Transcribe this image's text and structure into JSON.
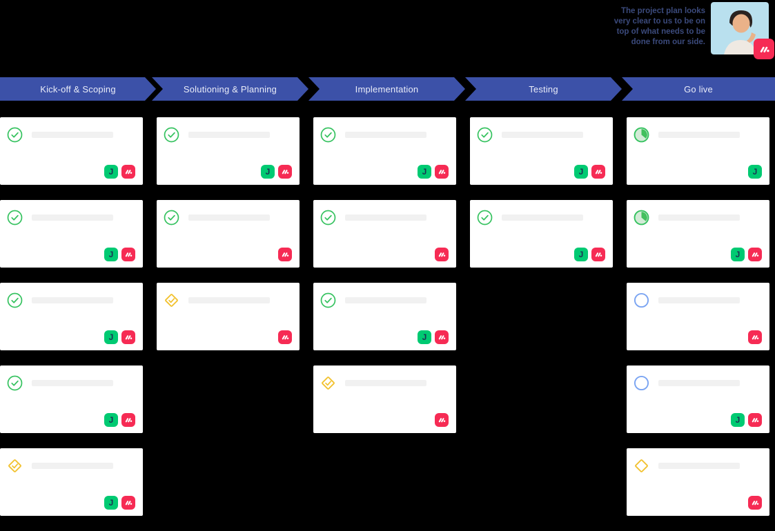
{
  "testimonial": {
    "quote_lines": [
      "The project plan looks",
      "very clear to us to be on",
      "top of what needs to be",
      "done from our side."
    ],
    "avatar": "customer-photo",
    "badge_icon": "monday-icon"
  },
  "phases": [
    {
      "label": "Kick-off & Scoping"
    },
    {
      "label": "Solutioning & Planning"
    },
    {
      "label": "Implementation"
    },
    {
      "label": "Testing"
    },
    {
      "label": "Go live"
    }
  ],
  "board": {
    "columns": [
      {
        "phase": "Kick-off & Scoping",
        "cards": [
          {
            "status": "done",
            "badges": [
              "app-j",
              "monday"
            ]
          },
          {
            "status": "done",
            "badges": [
              "app-j",
              "monday"
            ]
          },
          {
            "status": "done",
            "badges": [
              "app-j",
              "monday"
            ]
          },
          {
            "status": "done",
            "badges": [
              "app-j",
              "monday"
            ]
          },
          {
            "status": "milestone-done",
            "badges": [
              "app-j",
              "monday"
            ]
          }
        ]
      },
      {
        "phase": "Solutioning & Planning",
        "cards": [
          {
            "status": "done",
            "badges": [
              "app-j",
              "monday"
            ]
          },
          {
            "status": "done",
            "badges": [
              "monday"
            ]
          },
          {
            "status": "milestone-done",
            "badges": [
              "monday"
            ]
          }
        ]
      },
      {
        "phase": "Implementation",
        "cards": [
          {
            "status": "done",
            "badges": [
              "app-j",
              "monday"
            ]
          },
          {
            "status": "done",
            "badges": [
              "monday"
            ]
          },
          {
            "status": "done",
            "badges": [
              "app-j",
              "monday"
            ]
          },
          {
            "status": "milestone-done",
            "badges": [
              "monday"
            ]
          }
        ]
      },
      {
        "phase": "Testing",
        "cards": [
          {
            "status": "done",
            "badges": [
              "app-j",
              "monday"
            ]
          },
          {
            "status": "done",
            "badges": [
              "app-j",
              "monday"
            ]
          }
        ]
      },
      {
        "phase": "Go live",
        "cards": [
          {
            "status": "in-progress",
            "badges": [
              "app-j"
            ]
          },
          {
            "status": "in-progress",
            "badges": [
              "app-j",
              "monday"
            ]
          },
          {
            "status": "todo",
            "badges": [
              "monday"
            ]
          },
          {
            "status": "todo",
            "badges": [
              "app-j",
              "monday"
            ]
          },
          {
            "status": "milestone",
            "badges": [
              "monday"
            ]
          }
        ]
      }
    ]
  },
  "status_icons": {
    "done": "check-circle-icon",
    "milestone-done": "diamond-check-icon",
    "milestone": "diamond-icon",
    "in-progress": "pie-progress-icon",
    "todo": "circle-outline-icon"
  },
  "colors": {
    "background": "#000000",
    "phase_bar": "#3c51a8",
    "phase_text": "#e9ecf8",
    "card_bg": "#ffffff",
    "placeholder_bar": "#f1f1f1",
    "done_green": "#35c25f",
    "pie_interior": "#d3ebd7",
    "pie_slice": "#42c05e",
    "milestone_yellow": "#f2c230",
    "todo_blue": "#7aa4f2",
    "badge_app_bg": "#00ca72",
    "badge_app_glyph": "#1b3353",
    "badge_monday_bg": "#f62b54",
    "quote_text": "#3b4a7c",
    "avatar_bg": "#b9e0ee"
  }
}
